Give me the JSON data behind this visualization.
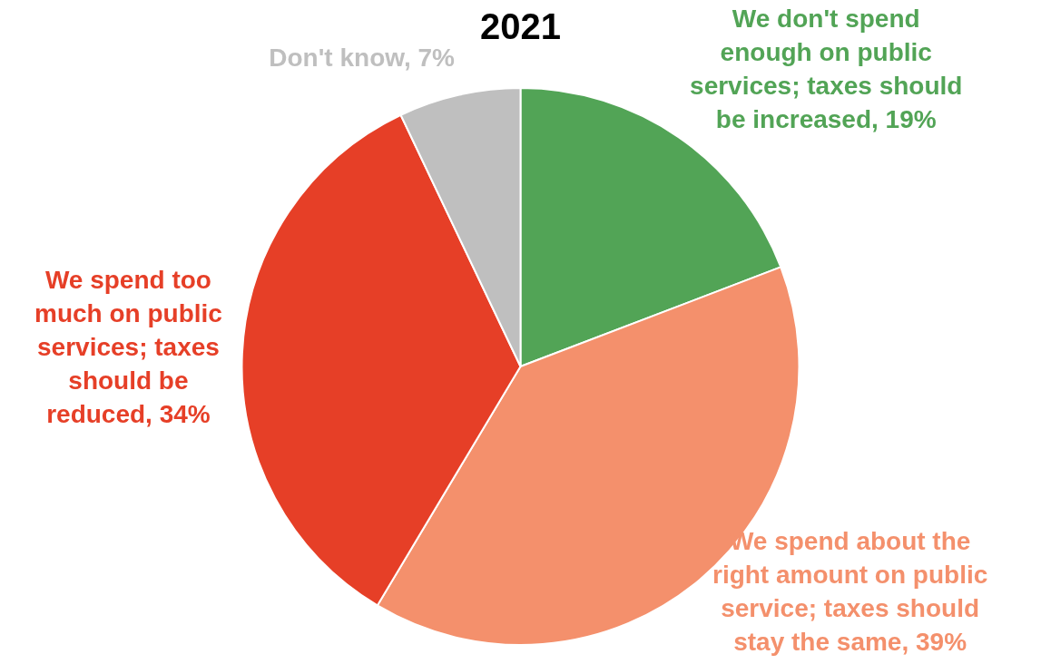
{
  "chart_data": {
    "type": "pie",
    "title": "2021",
    "categories": [
      "We don't spend enough on public services; taxes should be increased",
      "We spend about the right amount on public service; taxes should stay the same",
      "We spend too much on public services; taxes should be reduced",
      "Don't know"
    ],
    "values": [
      19,
      39,
      34,
      7
    ],
    "value_labels": [
      "19%",
      "39%",
      "34%",
      "7%"
    ],
    "colors": [
      "#52a456",
      "#f4906c",
      "#e63f27",
      "#bfbfbf"
    ],
    "legend": false
  }
}
